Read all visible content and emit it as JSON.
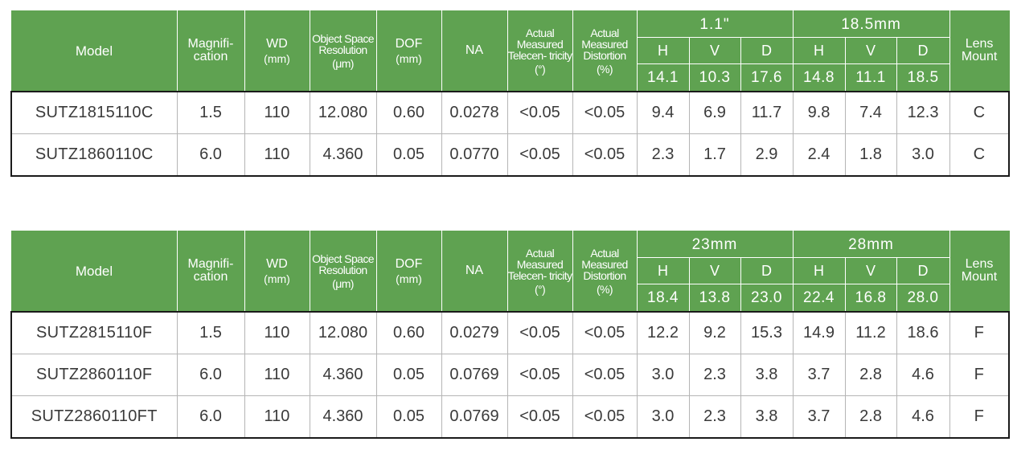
{
  "header": {
    "model": "Model",
    "magnification": "Magnifi- cation",
    "wd": "WD",
    "wd_unit": "(mm)",
    "resolution": "Object Space Resolution",
    "resolution_unit": "(μm)",
    "dof": "DOF",
    "dof_unit": "(mm)",
    "na": "NA",
    "telecentricity": "Actual Measured Telecen- tricity",
    "telecentricity_unit": "(°)",
    "distortion": "Actual Measured Distortion",
    "distortion_unit": "(%)",
    "lens_mount": "Lens Mount",
    "h": "H",
    "v": "V",
    "d": "D"
  },
  "tables": [
    {
      "sensors": [
        {
          "label": "1.1\"",
          "h": "14.1",
          "v": "10.3",
          "d": "17.6"
        },
        {
          "label": "18.5mm",
          "h": "14.8",
          "v": "11.1",
          "d": "18.5"
        }
      ],
      "rows": [
        {
          "model": "SUTZ1815110C",
          "mag": "1.5",
          "wd": "110",
          "res": "12.080",
          "dof": "0.60",
          "na": "0.0278",
          "tel": "<0.05",
          "dist": "<0.05",
          "s1": [
            "9.4",
            "6.9",
            "11.7"
          ],
          "s2": [
            "9.8",
            "7.4",
            "12.3"
          ],
          "mount": "C"
        },
        {
          "model": "SUTZ1860110C",
          "mag": "6.0",
          "wd": "110",
          "res": "4.360",
          "dof": "0.05",
          "na": "0.0770",
          "tel": "<0.05",
          "dist": "<0.05",
          "s1": [
            "2.3",
            "1.7",
            "2.9"
          ],
          "s2": [
            "2.4",
            "1.8",
            "3.0"
          ],
          "mount": "C"
        }
      ]
    },
    {
      "sensors": [
        {
          "label": "23mm",
          "h": "18.4",
          "v": "13.8",
          "d": "23.0"
        },
        {
          "label": "28mm",
          "h": "22.4",
          "v": "16.8",
          "d": "28.0"
        }
      ],
      "rows": [
        {
          "model": "SUTZ2815110F",
          "mag": "1.5",
          "wd": "110",
          "res": "12.080",
          "dof": "0.60",
          "na": "0.0279",
          "tel": "<0.05",
          "dist": "<0.05",
          "s1": [
            "12.2",
            "9.2",
            "15.3"
          ],
          "s2": [
            "14.9",
            "11.2",
            "18.6"
          ],
          "mount": "F"
        },
        {
          "model": "SUTZ2860110F",
          "mag": "6.0",
          "wd": "110",
          "res": "4.360",
          "dof": "0.05",
          "na": "0.0769",
          "tel": "<0.05",
          "dist": "<0.05",
          "s1": [
            "3.0",
            "2.3",
            "3.8"
          ],
          "s2": [
            "3.7",
            "2.8",
            "4.6"
          ],
          "mount": "F"
        },
        {
          "model": "SUTZ2860110FT",
          "mag": "6.0",
          "wd": "110",
          "res": "4.360",
          "dof": "0.05",
          "na": "0.0769",
          "tel": "<0.05",
          "dist": "<0.05",
          "s1": [
            "3.0",
            "2.3",
            "3.8"
          ],
          "s2": [
            "3.7",
            "2.8",
            "4.6"
          ],
          "mount": "F"
        }
      ]
    }
  ],
  "colors": {
    "header_green": "#5fa251",
    "header_text": "#ffffff",
    "cell_text": "#3a3a3a",
    "outer_border": "#1a1a1a",
    "inner_border": "#b5b5b5"
  }
}
